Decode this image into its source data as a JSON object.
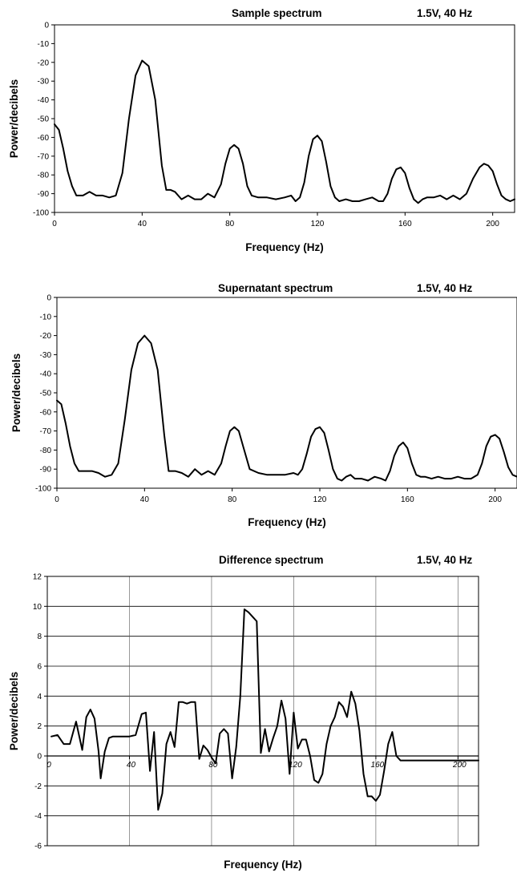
{
  "chart_data": [
    {
      "type": "line",
      "title": "Sample spectrum",
      "subtitle": "1.5V, 40 Hz",
      "xlabel": "Frequency (Hz)",
      "ylabel": "Power/decibels",
      "xlim": [
        0,
        210
      ],
      "ylim": [
        -100,
        0
      ],
      "xticks": [
        0,
        40,
        80,
        120,
        160,
        200
      ],
      "yticks": [
        0,
        -10,
        -20,
        -30,
        -40,
        -50,
        -60,
        -70,
        -80,
        -90,
        -100
      ],
      "grid": false,
      "series": [
        {
          "x": [
            0,
            2,
            4,
            6,
            8,
            10,
            13,
            16,
            19,
            22,
            25,
            28,
            31,
            34,
            37,
            40,
            43,
            46,
            49,
            51,
            53,
            55,
            58,
            61,
            64,
            67,
            70,
            73,
            76,
            78,
            80,
            82,
            84,
            86,
            88,
            90,
            93,
            97,
            101,
            105,
            108,
            110,
            112,
            114,
            116,
            118,
            120,
            122,
            124,
            126,
            128,
            130,
            133,
            136,
            139,
            142,
            145,
            148,
            150,
            152,
            154,
            156,
            158,
            160,
            162,
            164,
            166,
            168,
            170,
            173,
            176,
            179,
            182,
            185,
            188,
            191,
            194,
            196,
            198,
            200,
            202,
            204,
            206,
            208,
            210
          ],
          "y": [
            -53,
            -56,
            -66,
            -78,
            -86,
            -91,
            -91,
            -89,
            -91,
            -91,
            -92,
            -91,
            -79,
            -50,
            -27,
            -19,
            -22,
            -40,
            -75,
            -88,
            -88,
            -89,
            -93,
            -91,
            -93,
            -93,
            -90,
            -92,
            -85,
            -74,
            -66,
            -64,
            -66,
            -74,
            -86,
            -91,
            -92,
            -92,
            -93,
            -92,
            -91,
            -94,
            -92,
            -84,
            -70,
            -61,
            -59,
            -62,
            -73,
            -86,
            -92,
            -94,
            -93,
            -94,
            -94,
            -93,
            -92,
            -94,
            -94,
            -90,
            -82,
            -77,
            -76,
            -79,
            -87,
            -93,
            -95,
            -93,
            -92,
            -92,
            -91,
            -93,
            -91,
            -93,
            -90,
            -82,
            -76,
            -74,
            -75,
            -78,
            -85,
            -91,
            -93,
            -94,
            -93
          ]
        }
      ]
    },
    {
      "type": "line",
      "title": "Supernatant spectrum",
      "subtitle": "1.5V, 40 Hz",
      "xlabel": "Frequency (Hz)",
      "ylabel": "Power/decibels",
      "xlim": [
        0,
        210
      ],
      "ylim": [
        -100,
        0
      ],
      "xticks": [
        0,
        40,
        80,
        120,
        160,
        200
      ],
      "yticks": [
        0,
        -10,
        -20,
        -30,
        -40,
        -50,
        -60,
        -70,
        -80,
        -90,
        -100
      ],
      "grid": false,
      "series": [
        {
          "x": [
            0,
            2,
            4,
            6,
            8,
            10,
            13,
            16,
            19,
            22,
            25,
            28,
            31,
            34,
            37,
            40,
            43,
            46,
            49,
            51,
            54,
            57,
            60,
            63,
            66,
            69,
            72,
            75,
            77,
            79,
            81,
            83,
            85,
            88,
            92,
            96,
            100,
            104,
            108,
            110,
            112,
            114,
            116,
            118,
            120,
            122,
            124,
            126,
            128,
            130,
            132,
            134,
            136,
            139,
            142,
            145,
            148,
            150,
            152,
            154,
            156,
            158,
            160,
            162,
            164,
            166,
            168,
            171,
            174,
            177,
            180,
            183,
            186,
            189,
            192,
            194,
            196,
            198,
            200,
            202,
            204,
            206,
            208,
            210
          ],
          "y": [
            -54,
            -56,
            -66,
            -78,
            -87,
            -91,
            -91,
            -91,
            -92,
            -94,
            -93,
            -87,
            -64,
            -38,
            -24,
            -20,
            -24,
            -38,
            -72,
            -91,
            -91,
            -92,
            -94,
            -90,
            -93,
            -91,
            -93,
            -87,
            -78,
            -70,
            -68,
            -70,
            -78,
            -90,
            -92,
            -93,
            -93,
            -93,
            -92,
            -93,
            -90,
            -82,
            -73,
            -69,
            -68,
            -71,
            -80,
            -90,
            -95,
            -96,
            -94,
            -93,
            -95,
            -95,
            -96,
            -94,
            -95,
            -96,
            -91,
            -83,
            -78,
            -76,
            -79,
            -87,
            -93,
            -94,
            -94,
            -95,
            -94,
            -95,
            -95,
            -94,
            -95,
            -95,
            -93,
            -87,
            -78,
            -73,
            -72,
            -74,
            -81,
            -89,
            -93,
            -94
          ]
        }
      ]
    },
    {
      "type": "line",
      "title": "Difference spectrum",
      "subtitle": "1.5V, 40 Hz",
      "xlabel": "Frequency (Hz)",
      "ylabel": "Power/decibels",
      "xlim": [
        0,
        210
      ],
      "ylim": [
        -6,
        12
      ],
      "xticks": [
        0,
        40,
        80,
        120,
        160,
        200
      ],
      "yticks": [
        12,
        10,
        8,
        6,
        4,
        2,
        0,
        -2,
        -4,
        -6
      ],
      "grid": true,
      "series": [
        {
          "x": [
            2,
            5,
            8,
            11,
            14,
            17,
            19,
            21,
            23,
            25,
            26,
            28,
            30,
            32,
            34,
            37,
            40,
            43,
            46,
            48,
            50,
            52,
            54,
            56,
            58,
            60,
            62,
            64,
            66,
            68,
            70,
            72,
            74,
            76,
            78,
            80,
            82,
            84,
            86,
            88,
            90,
            92,
            94,
            96,
            98,
            100,
            102,
            104,
            106,
            108,
            110,
            112,
            114,
            116,
            118,
            120,
            122,
            124,
            126,
            128,
            130,
            132,
            134,
            136,
            138,
            140,
            142,
            144,
            146,
            148,
            150,
            152,
            154,
            156,
            158,
            160,
            162,
            164,
            166,
            168,
            170,
            172,
            174,
            176,
            178,
            180,
            182,
            184,
            186,
            188,
            190,
            192,
            194,
            196,
            198,
            200,
            202,
            204,
            206,
            208,
            210
          ],
          "y": [
            1.3,
            1.4,
            0.8,
            0.8,
            2.3,
            0.4,
            2.6,
            3.1,
            2.5,
            0.3,
            -1.5,
            0.3,
            1.2,
            1.3,
            1.3,
            1.3,
            1.3,
            1.4,
            2.8,
            2.9,
            -1.0,
            1.6,
            -3.6,
            -2.5,
            0.8,
            1.6,
            0.6,
            3.6,
            3.6,
            3.5,
            3.6,
            3.6,
            -0.2,
            0.7,
            0.4,
            -0.1,
            -0.5,
            1.5,
            1.8,
            1.5,
            -1.5,
            0.6,
            4.0,
            9.8,
            9.6,
            9.3,
            9.0,
            0.2,
            1.8,
            0.3,
            1.2,
            2.0,
            3.7,
            2.5,
            -1.2,
            2.9,
            0.5,
            1.1,
            1.1,
            0.0,
            -1.6,
            -1.8,
            -1.2,
            0.8,
            2.0,
            2.6,
            3.6,
            3.3,
            2.6,
            4.3,
            3.5,
            1.7,
            -1.2,
            -2.7,
            -2.7,
            -3.0,
            -2.6,
            -1.0,
            0.8,
            1.6,
            0.0,
            -0.3,
            -0.3,
            -0.3,
            -0.3,
            -0.3,
            -0.3,
            -0.3,
            -0.3,
            -0.3,
            -0.3,
            -0.3,
            -0.3,
            -0.3,
            -0.3,
            -0.3,
            -0.3,
            -0.3,
            -0.3,
            -0.3,
            -0.3
          ]
        }
      ]
    }
  ]
}
